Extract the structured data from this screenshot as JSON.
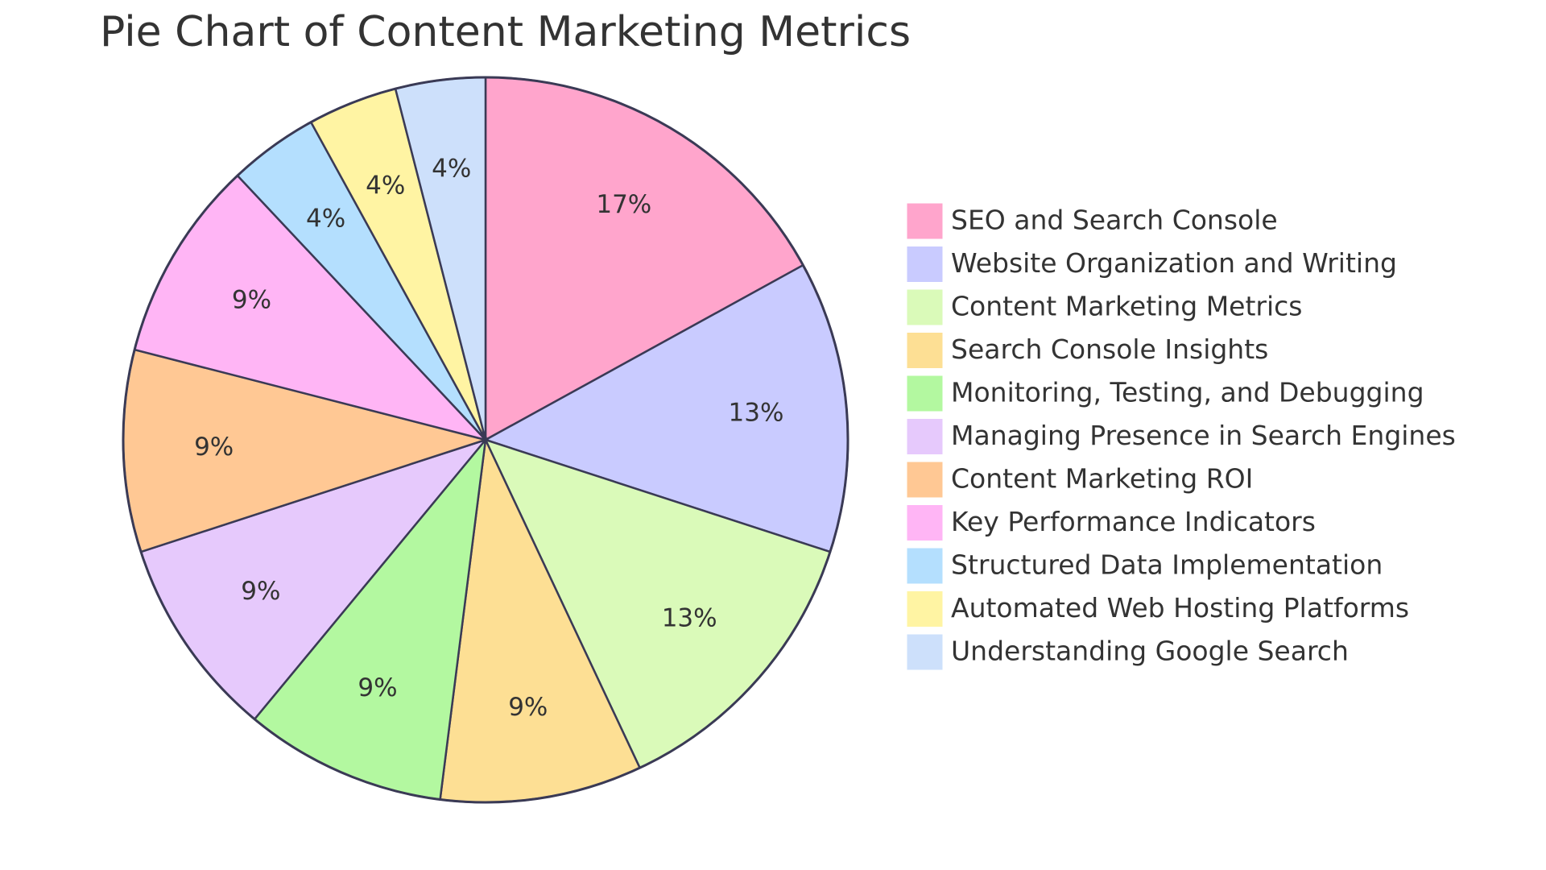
{
  "chart_data": {
    "type": "pie",
    "title": "Pie Chart of Content Marketing Metrics",
    "categories": [
      "SEO and Search Console",
      "Website Organization and Writing",
      "Content Marketing Metrics",
      "Search Console Insights",
      "Monitoring, Testing, and Debugging",
      "Managing Presence in Search Engines",
      "Content Marketing ROI",
      "Key Performance Indicators",
      "Structured Data Implementation",
      "Automated Web Hosting Platforms",
      "Understanding Google Search"
    ],
    "values": [
      17,
      13,
      13,
      9,
      9,
      9,
      9,
      9,
      4,
      4,
      4
    ],
    "value_labels": [
      "17%",
      "13%",
      "13%",
      "9%",
      "9%",
      "9%",
      "9%",
      "9%",
      "4%",
      "4%",
      "4%"
    ],
    "colors": [
      "#ffa5cc",
      "#c9cbff",
      "#dafab9",
      "#fddf94",
      "#b3f8a0",
      "#e6c9fc",
      "#ffc894",
      "#ffb5f5",
      "#b4dffe",
      "#fff4a3",
      "#cde0fb"
    ],
    "legend": "right"
  }
}
